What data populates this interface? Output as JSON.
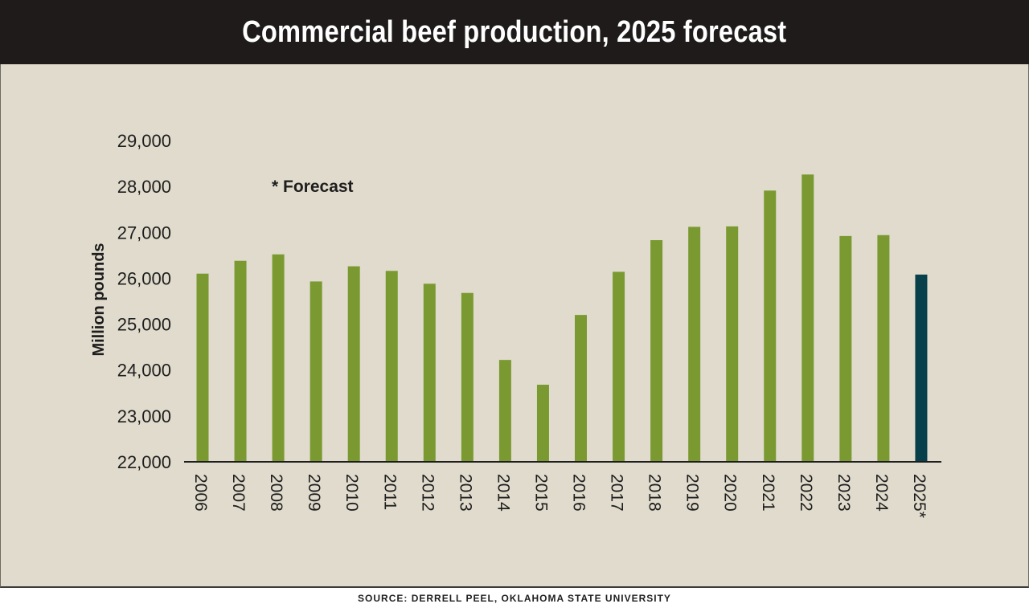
{
  "chart_data": {
    "type": "bar",
    "title": "Commercial beef production, 2025 forecast",
    "ylabel": "Million pounds",
    "xlabel": "",
    "annotation": "* Forecast",
    "source": "SOURCE: DERRELL PEEL, OKLAHOMA STATE UNIVERSITY",
    "categories": [
      "2006",
      "2007",
      "2008",
      "2009",
      "2010",
      "2011",
      "2012",
      "2013",
      "2014",
      "2015",
      "2016",
      "2017",
      "2018",
      "2019",
      "2020",
      "2021",
      "2022",
      "2023",
      "2024",
      "2025*"
    ],
    "values": [
      26100,
      26380,
      26520,
      25930,
      26260,
      26160,
      25880,
      25680,
      24220,
      23680,
      25200,
      26140,
      26830,
      27120,
      27130,
      27910,
      28260,
      26920,
      26940,
      26080
    ],
    "ylim": [
      22000,
      29000
    ],
    "yticks": [
      22000,
      23000,
      24000,
      25000,
      26000,
      27000,
      28000,
      29000
    ],
    "ytick_labels": [
      "22,000",
      "23,000",
      "24,000",
      "25,000",
      "26,000",
      "27,000",
      "28,000",
      "29,000"
    ],
    "colors": {
      "actual": "#7a9a31",
      "forecast": "#073f4a",
      "axis": "#1e1e1e",
      "text": "#1e1e1e"
    },
    "forecast_index": 19
  }
}
